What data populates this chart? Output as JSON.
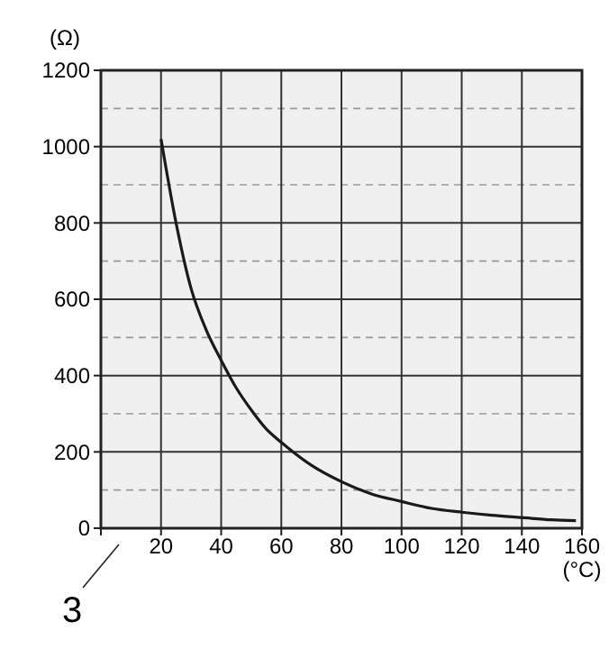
{
  "chart_data": {
    "type": "line",
    "ylabel": "(Ω)",
    "xlabel": "(°C)",
    "x": [
      20,
      25,
      30,
      35,
      40,
      45,
      50,
      55,
      60,
      70,
      80,
      90,
      100,
      110,
      120,
      130,
      140,
      150,
      158
    ],
    "series": [
      {
        "color": "#1a1a1a",
        "values": [
          1020,
          800,
          628,
          520,
          440,
          368,
          310,
          260,
          225,
          165,
          122,
          90,
          70,
          52,
          42,
          34,
          28,
          22,
          20
        ]
      }
    ],
    "xlim": [
      0,
      160
    ],
    "xticks": [
      {
        "value": 0,
        "label": null
      },
      20,
      40,
      60,
      80,
      100,
      120,
      140,
      160
    ],
    "ylim": [
      0,
      1200
    ],
    "yticks": [
      0,
      {
        "value": 100,
        "label": null
      },
      200,
      {
        "value": 300,
        "label": null
      },
      400,
      {
        "value": 500,
        "label": null
      },
      600,
      {
        "value": 700,
        "label": null
      },
      800,
      {
        "value": 900,
        "label": null
      },
      1000,
      {
        "value": 1100,
        "label": null
      },
      1200
    ],
    "grid": true,
    "marker": "none",
    "line_style": "solid",
    "annotations": [
      "3"
    ]
  }
}
